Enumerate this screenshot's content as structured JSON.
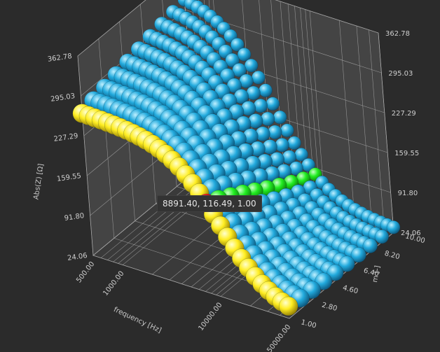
{
  "chart_data": {
    "type": "scatter3d",
    "xlabel": "frequency [Hz]",
    "ylabel": "Abs(Z) [Ω]",
    "zlabel": "m [-]",
    "x_ticks": [
      "500.00",
      "1000.00",
      "10000.00",
      "50000.00"
    ],
    "y_ticks": [
      "24.06",
      "91.80",
      "159.55",
      "227.29",
      "295.03",
      "362.78"
    ],
    "z_ticks": [
      "1.00",
      "2.80",
      "4.60",
      "6.40",
      "8.20",
      "10.00"
    ],
    "xlim": [
      500,
      50000
    ],
    "ylim": [
      24.06,
      362.78
    ],
    "zlim": [
      1,
      10
    ],
    "x_scale": "log",
    "series_colors": {
      "base": "#22aadd",
      "first": "#ffee22",
      "slice": "#22ee22",
      "selected": "#ee1111"
    },
    "tooltip": "8891.40, 116.49, 1.00",
    "selected_point": {
      "x": 8891.4,
      "y": 116.49,
      "z": 1.0
    }
  }
}
